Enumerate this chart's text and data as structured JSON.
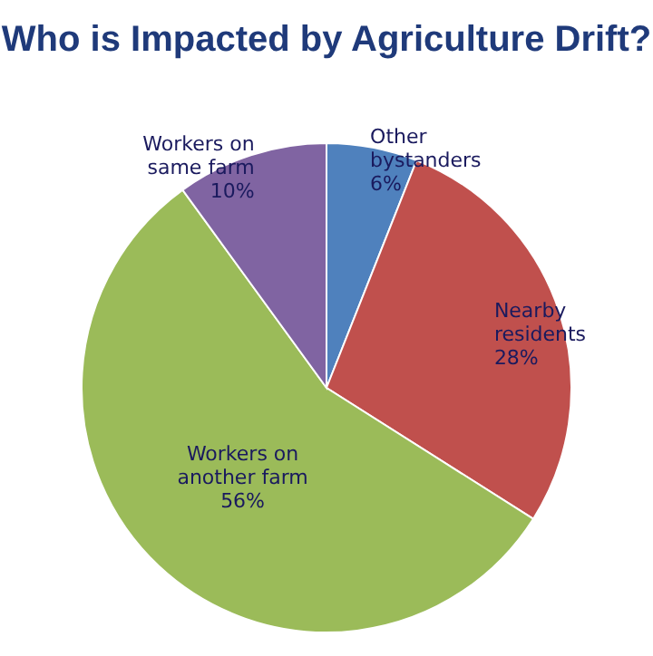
{
  "chart_data": {
    "type": "pie",
    "title": "Who is Impacted by Agriculture Drift?",
    "categories": [
      "Other bystanders",
      "Nearby residents",
      "Workers on another farm",
      "Workers on same farm"
    ],
    "values": [
      6,
      28,
      56,
      10
    ],
    "colors": [
      "#4f81bd",
      "#c0504d",
      "#9bbb59",
      "#8064a2"
    ],
    "value_labels": [
      "6%",
      "28%",
      "56%",
      "10%"
    ]
  }
}
